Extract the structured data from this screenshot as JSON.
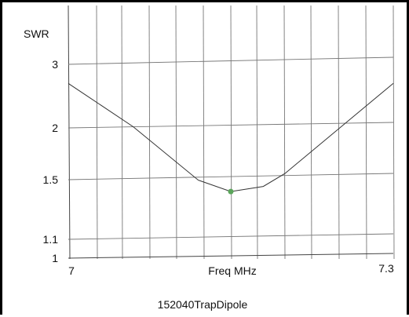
{
  "chart_data": {
    "type": "line",
    "title": "",
    "ylabel": "SWR",
    "xlabel": "Freq MHz",
    "caption": "152040TrapDipole",
    "x_range": [
      7,
      7.3
    ],
    "x_tick_labels": [
      "7",
      "7.3"
    ],
    "y_tick_labels": [
      "3",
      "2",
      "1.5",
      "1.1",
      "1"
    ],
    "y_ticks": [
      3,
      2,
      1.5,
      1.1,
      1
    ],
    "series": [
      {
        "x": [
          7.0,
          7.06,
          7.12,
          7.15,
          7.18,
          7.2,
          7.3
        ],
        "y": [
          2.7,
          2.0,
          1.48,
          1.4,
          1.43,
          1.52,
          2.6
        ],
        "color": "#333333"
      }
    ],
    "marker": {
      "x": 7.15,
      "y": 1.4,
      "color": "#5aa55a"
    },
    "grid": true
  }
}
